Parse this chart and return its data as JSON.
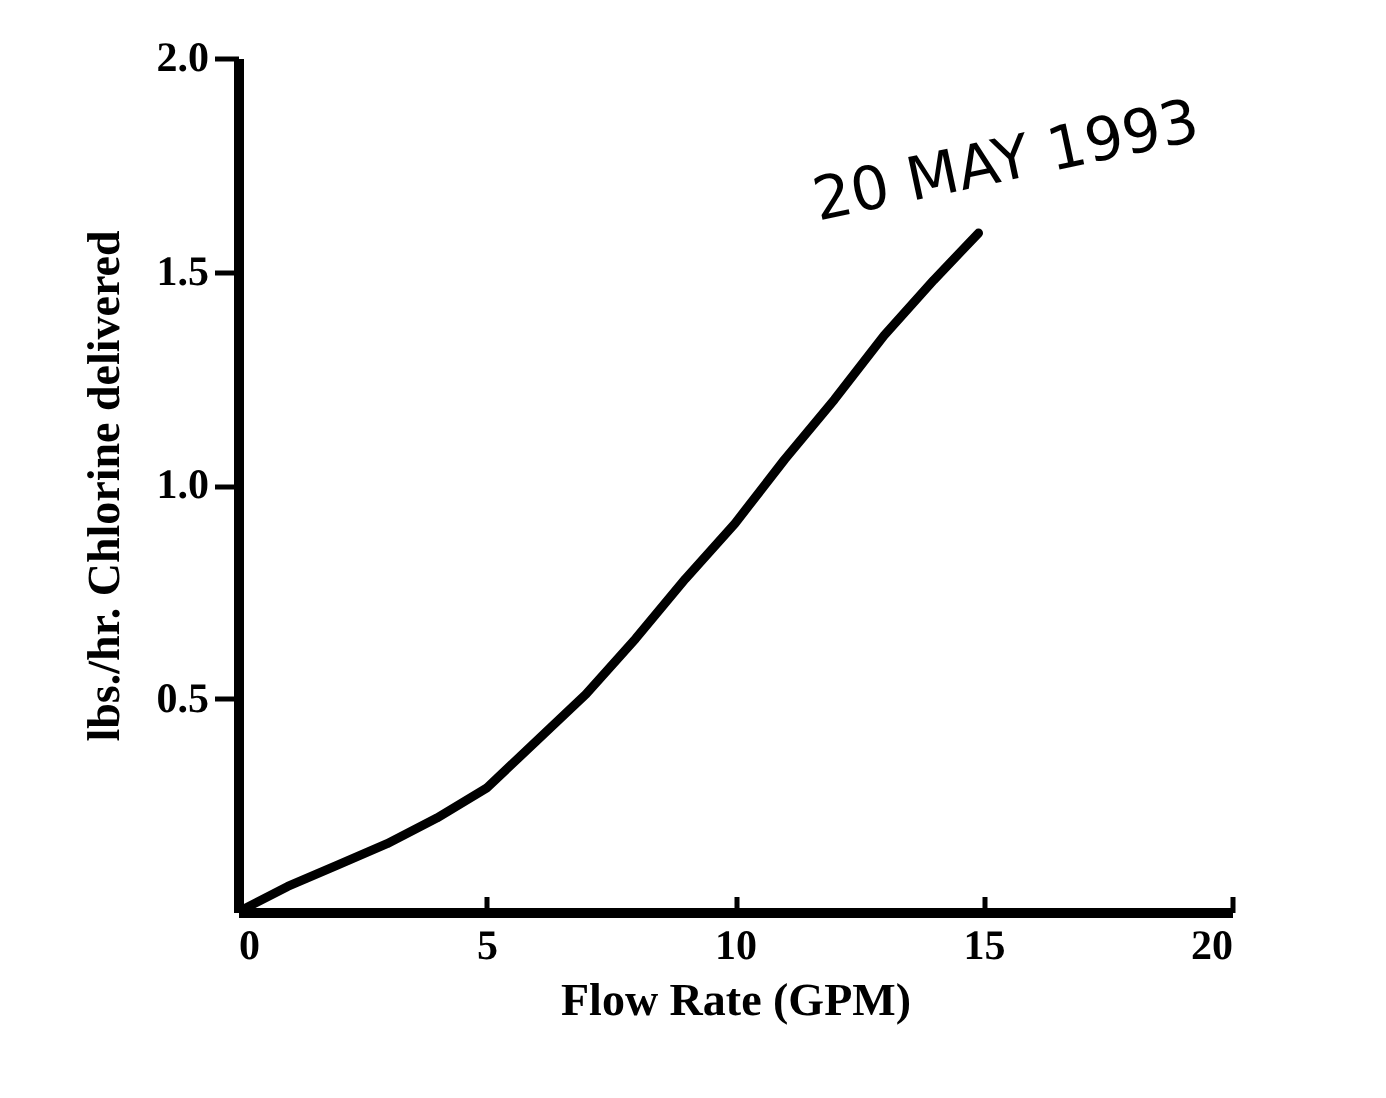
{
  "chart_data": {
    "type": "line",
    "xlabel": "Flow Rate (GPM)",
    "ylabel": "lbs./hr. Chlorine delivered",
    "x": [
      0,
      1,
      2,
      3,
      4,
      5,
      6,
      7,
      8,
      9,
      10,
      11,
      12,
      13,
      14,
      14.9
    ],
    "series": [
      {
        "color": "#000000",
        "values": [
          0,
          0.06,
          0.11,
          0.16,
          0.22,
          0.29,
          0.4,
          0.51,
          0.64,
          0.78,
          0.91,
          1.06,
          1.2,
          1.35,
          1.48,
          1.59
        ]
      }
    ],
    "xlim": [
      0,
      20
    ],
    "xticks": [
      0,
      5,
      10,
      15,
      20
    ],
    "ylim": [
      0,
      2
    ],
    "yticks": [
      {
        "value": 0.5,
        "label": "0.5"
      },
      {
        "value": 1,
        "label": "1.0"
      },
      {
        "value": 1.5,
        "label": "1.5"
      },
      {
        "value": 2,
        "label": "2.0"
      }
    ],
    "grid": false,
    "marker": "none",
    "line_style": "solid",
    "annotations": [
      "20 MAY 1993"
    ]
  }
}
